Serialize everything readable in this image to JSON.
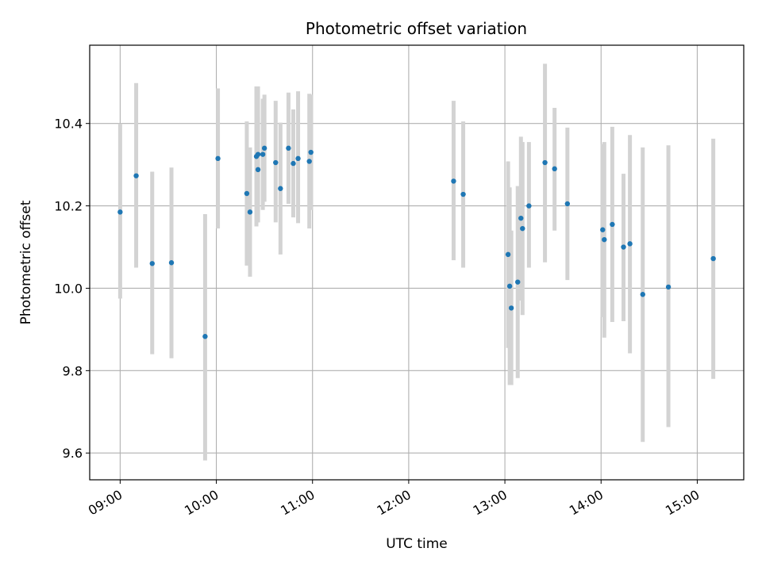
{
  "chart_data": {
    "type": "scatter",
    "title": "Photometric offset variation",
    "xlabel": "UTC time",
    "ylabel": "Photometric offset",
    "x_ticks": [
      "09:00",
      "10:00",
      "11:00",
      "12:00",
      "13:00",
      "14:00",
      "15:00"
    ],
    "y_ticks": [
      "9.6",
      "9.8",
      "10.0",
      "10.2",
      "10.4"
    ],
    "x_range": [
      "08:41",
      "15:29"
    ],
    "ylim": [
      9.535,
      10.59
    ],
    "grid": true,
    "errorbar_color": "#d3d3d3",
    "marker_color": "#1f77b4",
    "series": [
      {
        "points": [
          {
            "x": "09:00",
            "y": 10.185,
            "lo": 9.975,
            "hi": 10.4
          },
          {
            "x": "09:10",
            "y": 10.273,
            "lo": 10.05,
            "hi": 10.498
          },
          {
            "x": "09:20",
            "y": 10.06,
            "lo": 9.84,
            "hi": 10.283
          },
          {
            "x": "09:32",
            "y": 10.062,
            "lo": 9.83,
            "hi": 10.293
          },
          {
            "x": "09:53",
            "y": 9.883,
            "lo": 9.582,
            "hi": 10.18
          },
          {
            "x": "10:01",
            "y": 10.315,
            "lo": 10.145,
            "hi": 10.485
          },
          {
            "x": "10:19",
            "y": 10.23,
            "lo": 10.055,
            "hi": 10.405
          },
          {
            "x": "10:21",
            "y": 10.185,
            "lo": 10.028,
            "hi": 10.342
          },
          {
            "x": "10:25",
            "y": 10.32,
            "lo": 10.15,
            "hi": 10.49
          },
          {
            "x": "10:26",
            "y": 10.288,
            "lo": 10.16,
            "hi": 10.415
          },
          {
            "x": "10:26",
            "y": 10.325,
            "lo": 10.16,
            "hi": 10.49
          },
          {
            "x": "10:29",
            "y": 10.325,
            "lo": 10.19,
            "hi": 10.46
          },
          {
            "x": "10:30",
            "y": 10.34,
            "lo": 10.21,
            "hi": 10.47
          },
          {
            "x": "10:37",
            "y": 10.305,
            "lo": 10.16,
            "hi": 10.455
          },
          {
            "x": "10:40",
            "y": 10.242,
            "lo": 10.082,
            "hi": 10.402
          },
          {
            "x": "10:45",
            "y": 10.34,
            "lo": 10.205,
            "hi": 10.475
          },
          {
            "x": "10:48",
            "y": 10.303,
            "lo": 10.172,
            "hi": 10.434
          },
          {
            "x": "10:51",
            "y": 10.315,
            "lo": 10.158,
            "hi": 10.478
          },
          {
            "x": "10:58",
            "y": 10.308,
            "lo": 10.145,
            "hi": 10.472
          },
          {
            "x": "10:59",
            "y": 10.33,
            "lo": 10.19,
            "hi": 10.47
          },
          {
            "x": "12:28",
            "y": 10.26,
            "lo": 10.068,
            "hi": 10.455
          },
          {
            "x": "12:34",
            "y": 10.228,
            "lo": 10.05,
            "hi": 10.405
          },
          {
            "x": "13:02",
            "y": 10.082,
            "lo": 9.855,
            "hi": 10.308
          },
          {
            "x": "13:03",
            "y": 10.005,
            "lo": 9.765,
            "hi": 10.245
          },
          {
            "x": "13:04",
            "y": 9.952,
            "lo": 9.765,
            "hi": 10.14
          },
          {
            "x": "13:08",
            "y": 10.015,
            "lo": 9.782,
            "hi": 10.248
          },
          {
            "x": "13:10",
            "y": 10.17,
            "lo": 9.97,
            "hi": 10.368
          },
          {
            "x": "13:11",
            "y": 10.145,
            "lo": 9.935,
            "hi": 10.355
          },
          {
            "x": "13:15",
            "y": 10.2,
            "lo": 10.05,
            "hi": 10.355
          },
          {
            "x": "13:25",
            "y": 10.305,
            "lo": 10.063,
            "hi": 10.545
          },
          {
            "x": "13:31",
            "y": 10.29,
            "lo": 10.14,
            "hi": 10.438
          },
          {
            "x": "13:39",
            "y": 10.205,
            "lo": 10.02,
            "hi": 10.39
          },
          {
            "x": "14:01",
            "y": 10.142,
            "lo": 9.93,
            "hi": 10.35
          },
          {
            "x": "14:02",
            "y": 10.118,
            "lo": 9.88,
            "hi": 10.355
          },
          {
            "x": "14:07",
            "y": 10.155,
            "lo": 9.918,
            "hi": 10.392
          },
          {
            "x": "14:14",
            "y": 10.1,
            "lo": 9.92,
            "hi": 10.278
          },
          {
            "x": "14:18",
            "y": 10.108,
            "lo": 9.842,
            "hi": 10.372
          },
          {
            "x": "14:26",
            "y": 9.985,
            "lo": 9.627,
            "hi": 10.342
          },
          {
            "x": "14:42",
            "y": 10.003,
            "lo": 9.663,
            "hi": 10.347
          },
          {
            "x": "15:10",
            "y": 10.072,
            "lo": 9.78,
            "hi": 10.363
          }
        ]
      }
    ]
  }
}
